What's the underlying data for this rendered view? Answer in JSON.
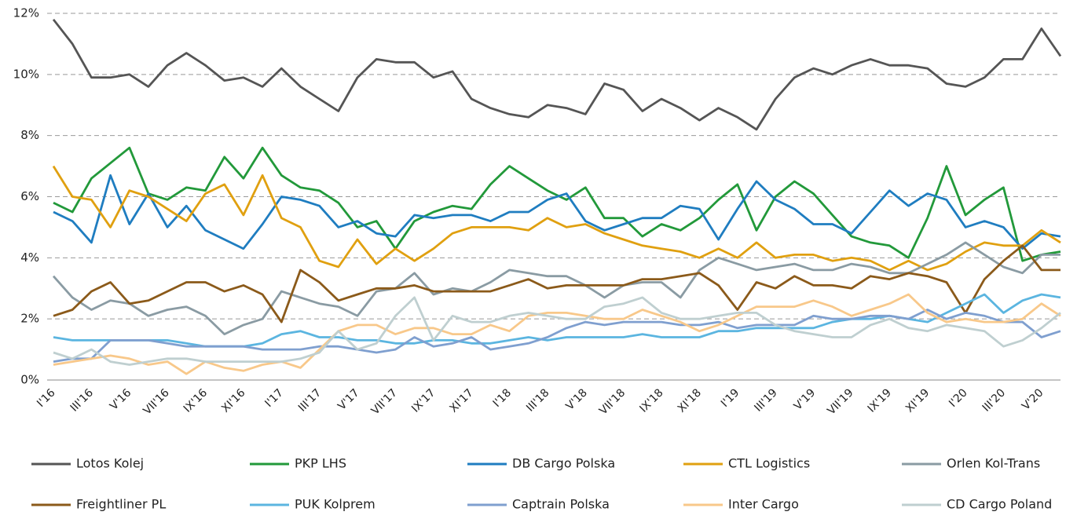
{
  "chart_data": {
    "type": "line",
    "categories": [
      "I'16",
      null,
      "III'16",
      null,
      "V'16",
      null,
      "VII'16",
      null,
      "IX'16",
      null,
      "XI'16",
      null,
      "I'17",
      null,
      "III'17",
      null,
      "V'17",
      null,
      "VII'17",
      null,
      "IX'17",
      null,
      "XI'17",
      null,
      "I'18",
      null,
      "III'18",
      null,
      "V'18",
      null,
      "VII'18",
      null,
      "IX'18",
      null,
      "XI'18",
      null,
      "I'19",
      null,
      "III'19",
      null,
      "V'19",
      null,
      "VII'19",
      null,
      "IX'19",
      null,
      "XI'19",
      null,
      "I'20",
      null,
      "III'20",
      null,
      "V'20",
      null
    ],
    "ylim": [
      0,
      12
    ],
    "yticks": [
      {
        "value": 0,
        "label": "0%"
      },
      {
        "value": 2,
        "label": "2%"
      },
      {
        "value": 4,
        "label": "4%"
      },
      {
        "value": 6,
        "label": "6%"
      },
      {
        "value": 8,
        "label": "8%"
      },
      {
        "value": 10,
        "label": "10%"
      },
      {
        "value": 12,
        "label": "12%"
      }
    ],
    "grid": true,
    "legend": "bottom",
    "series": [
      {
        "name": "Lotos Kolej",
        "color": "#555555",
        "values": [
          11.8,
          11.0,
          9.9,
          9.9,
          10.0,
          9.6,
          10.3,
          10.7,
          10.3,
          9.8,
          9.9,
          9.6,
          10.2,
          9.6,
          9.2,
          8.8,
          9.9,
          10.5,
          10.4,
          10.4,
          9.9,
          10.1,
          9.2,
          8.9,
          8.7,
          8.6,
          9.0,
          8.9,
          8.7,
          9.7,
          9.5,
          8.8,
          9.2,
          8.9,
          8.5,
          8.9,
          8.6,
          8.2,
          9.2,
          9.9,
          10.2,
          10.0,
          10.3,
          10.5,
          10.3,
          10.3,
          10.2,
          9.7,
          9.6,
          9.9,
          10.5,
          10.5,
          11.5,
          10.6
        ]
      },
      {
        "name": "PKP LHS",
        "color": "#22993a",
        "values": [
          5.8,
          5.5,
          6.6,
          7.1,
          7.6,
          6.1,
          5.9,
          6.3,
          6.2,
          7.3,
          6.6,
          7.6,
          6.7,
          6.3,
          6.2,
          5.8,
          5.0,
          5.2,
          4.3,
          5.2,
          5.5,
          5.7,
          5.6,
          6.4,
          7.0,
          6.6,
          6.2,
          5.9,
          6.3,
          5.3,
          5.3,
          4.7,
          5.1,
          4.9,
          5.3,
          5.9,
          6.4,
          4.9,
          6.0,
          6.5,
          6.1,
          5.4,
          4.7,
          4.5,
          4.4,
          4.0,
          5.3,
          7.0,
          5.4,
          5.9,
          6.3,
          3.9,
          4.1,
          4.2
        ]
      },
      {
        "name": "DB Cargo Polska",
        "color": "#1f7dc0",
        "values": [
          5.5,
          5.2,
          4.5,
          6.7,
          5.1,
          6.1,
          5.0,
          5.7,
          4.9,
          4.6,
          4.3,
          5.1,
          6.0,
          5.9,
          5.7,
          5.0,
          5.2,
          4.8,
          4.7,
          5.4,
          5.3,
          5.4,
          5.4,
          5.2,
          5.5,
          5.5,
          5.9,
          6.1,
          5.2,
          4.9,
          5.1,
          5.3,
          5.3,
          5.7,
          5.6,
          4.6,
          5.6,
          6.5,
          5.9,
          5.6,
          5.1,
          5.1,
          4.8,
          5.5,
          6.2,
          5.7,
          6.1,
          5.9,
          5.0,
          5.2,
          5.0,
          4.3,
          4.8,
          4.7
        ]
      },
      {
        "name": "CTL Logistics",
        "color": "#e0a010",
        "values": [
          7.0,
          6.0,
          5.9,
          5.0,
          6.2,
          6.0,
          5.6,
          5.2,
          6.1,
          6.4,
          5.4,
          6.7,
          5.3,
          5.0,
          3.9,
          3.7,
          4.6,
          3.8,
          4.3,
          3.9,
          4.3,
          4.8,
          5.0,
          5.0,
          5.0,
          4.9,
          5.3,
          5.0,
          5.1,
          4.8,
          4.6,
          4.4,
          4.3,
          4.2,
          4.0,
          4.3,
          4.0,
          4.5,
          4.0,
          4.1,
          4.1,
          3.9,
          4.0,
          3.9,
          3.6,
          3.9,
          3.6,
          3.8,
          4.2,
          4.5,
          4.4,
          4.4,
          4.9,
          4.5
        ]
      },
      {
        "name": "Orlen Kol-Trans",
        "color": "#8a9ba3",
        "values": [
          3.4,
          2.7,
          2.3,
          2.6,
          2.5,
          2.1,
          2.3,
          2.4,
          2.1,
          1.5,
          1.8,
          2.0,
          2.9,
          2.7,
          2.5,
          2.4,
          2.1,
          2.9,
          3.0,
          3.5,
          2.8,
          3.0,
          2.9,
          3.2,
          3.6,
          3.5,
          3.4,
          3.4,
          3.1,
          2.7,
          3.1,
          3.2,
          3.2,
          2.7,
          3.6,
          4.0,
          3.8,
          3.6,
          3.7,
          3.8,
          3.6,
          3.6,
          3.8,
          3.7,
          3.5,
          3.5,
          3.8,
          4.1,
          4.5,
          4.1,
          3.7,
          3.5,
          4.1,
          4.1
        ]
      },
      {
        "name": "Freightliner PL",
        "color": "#8b5a1a",
        "values": [
          2.1,
          2.3,
          2.9,
          3.2,
          2.5,
          2.6,
          2.9,
          3.2,
          3.2,
          2.9,
          3.1,
          2.8,
          1.9,
          3.6,
          3.2,
          2.6,
          2.8,
          3.0,
          3.0,
          3.1,
          2.9,
          2.9,
          2.9,
          2.9,
          3.1,
          3.3,
          3.0,
          3.1,
          3.1,
          3.1,
          3.1,
          3.3,
          3.3,
          3.4,
          3.5,
          3.1,
          2.3,
          3.2,
          3.0,
          3.4,
          3.1,
          3.1,
          3.0,
          3.4,
          3.3,
          3.5,
          3.4,
          3.2,
          2.2,
          3.3,
          3.9,
          4.4,
          3.6,
          3.6
        ]
      },
      {
        "name": "PUK Kolprem",
        "color": "#5bb5e0",
        "values": [
          1.4,
          1.3,
          1.3,
          1.3,
          1.3,
          1.3,
          1.3,
          1.2,
          1.1,
          1.1,
          1.1,
          1.2,
          1.5,
          1.6,
          1.4,
          1.4,
          1.3,
          1.3,
          1.2,
          1.2,
          1.3,
          1.3,
          1.2,
          1.2,
          1.3,
          1.4,
          1.3,
          1.4,
          1.4,
          1.4,
          1.4,
          1.5,
          1.4,
          1.4,
          1.4,
          1.6,
          1.6,
          1.7,
          1.7,
          1.7,
          1.7,
          1.9,
          2.0,
          2.0,
          2.1,
          2.0,
          1.9,
          2.2,
          2.5,
          2.8,
          2.2,
          2.6,
          2.8,
          2.7
        ]
      },
      {
        "name": "Captrain Polska",
        "color": "#7f9fcf",
        "values": [
          0.6,
          0.7,
          0.7,
          1.3,
          1.3,
          1.3,
          1.2,
          1.1,
          1.1,
          1.1,
          1.1,
          1.0,
          1.0,
          1.0,
          1.1,
          1.1,
          1.0,
          0.9,
          1.0,
          1.4,
          1.1,
          1.2,
          1.4,
          1.0,
          1.1,
          1.2,
          1.4,
          1.7,
          1.9,
          1.8,
          1.9,
          1.9,
          1.9,
          1.8,
          1.8,
          1.9,
          1.7,
          1.8,
          1.8,
          1.8,
          2.1,
          2.0,
          2.0,
          2.1,
          2.1,
          2.0,
          2.3,
          2.0,
          2.2,
          2.1,
          1.9,
          1.9,
          1.4,
          1.6
        ]
      },
      {
        "name": "Inter Cargo",
        "color": "#f8c88a",
        "values": [
          0.5,
          0.6,
          0.7,
          0.8,
          0.7,
          0.5,
          0.6,
          0.2,
          0.6,
          0.4,
          0.3,
          0.5,
          0.6,
          0.4,
          1.0,
          1.6,
          1.8,
          1.8,
          1.5,
          1.7,
          1.7,
          1.5,
          1.5,
          1.8,
          1.6,
          2.1,
          2.2,
          2.2,
          2.1,
          2.0,
          2.0,
          2.3,
          2.1,
          1.9,
          1.6,
          1.8,
          2.1,
          2.4,
          2.4,
          2.4,
          2.6,
          2.4,
          2.1,
          2.3,
          2.5,
          2.8,
          2.2,
          1.9,
          2.0,
          1.9,
          1.9,
          2.0,
          2.5,
          2.1
        ]
      },
      {
        "name": "CD Cargo Poland",
        "color": "#bfcfd0",
        "values": [
          0.9,
          0.7,
          1.0,
          0.6,
          0.5,
          0.6,
          0.7,
          0.7,
          0.6,
          0.6,
          0.6,
          0.6,
          0.6,
          0.7,
          0.9,
          1.6,
          1.0,
          1.2,
          2.1,
          2.7,
          1.3,
          2.1,
          1.9,
          1.9,
          2.1,
          2.2,
          2.1,
          2.0,
          2.0,
          2.4,
          2.5,
          2.7,
          2.2,
          2.0,
          2.0,
          2.1,
          2.2,
          2.2,
          1.8,
          1.6,
          1.5,
          1.4,
          1.4,
          1.8,
          2.0,
          1.7,
          1.6,
          1.8,
          1.7,
          1.6,
          1.1,
          1.3,
          1.7,
          2.2
        ]
      }
    ]
  }
}
